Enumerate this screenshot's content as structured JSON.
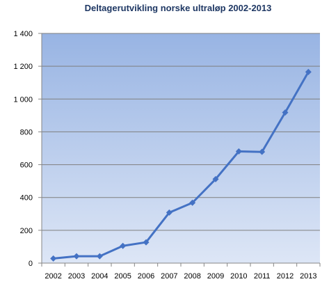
{
  "chart_data": {
    "type": "line",
    "title": "Deltagerutvikling norske ultraløp 2002-2013",
    "xlabel": "",
    "ylabel": "",
    "categories": [
      "2002",
      "2003",
      "2004",
      "2005",
      "2006",
      "2007",
      "2008",
      "2009",
      "2010",
      "2011",
      "2012",
      "2013"
    ],
    "series": [
      {
        "values": [
          28,
          42,
          42,
          105,
          127,
          308,
          368,
          512,
          681,
          678,
          918,
          1165
        ]
      }
    ],
    "ylim": [
      0,
      1400
    ],
    "yticks": [
      0,
      200,
      400,
      600,
      800,
      1000,
      1200,
      1400
    ],
    "ytick_labels": [
      "0",
      "200",
      "400",
      "600",
      "800",
      "1 000",
      "1 200",
      "1 400"
    ],
    "grid": true,
    "legend": "none",
    "colors": {
      "title": "#1f3864",
      "line": "#4472c4",
      "grid": "#7f7f7f",
      "plot_top": "#98b4e3",
      "plot_bottom": "#dde6f6",
      "axis_text": "#000000"
    }
  }
}
